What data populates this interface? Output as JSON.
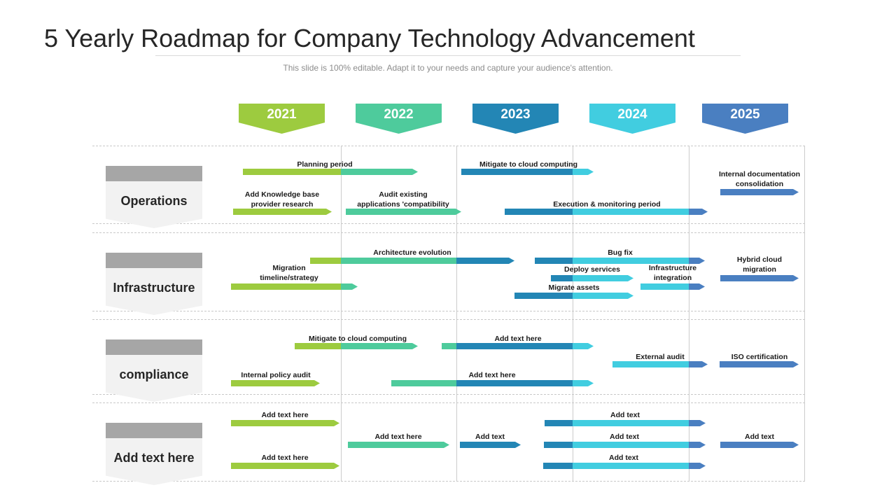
{
  "title": "5 Yearly Roadmap for Company Technology Advancement",
  "subtitle": "This slide is 100% editable. Adapt it to your needs and capture your audience's attention.",
  "colors": {
    "green": "#9dcb3f",
    "teal": "#4ecb9c",
    "dark_blue": "#2386b5",
    "cyan": "#41cde0",
    "blue": "#4a7fc1",
    "label_cap": "#a6a6a6",
    "label_body": "#f2f2f2"
  },
  "years": [
    {
      "label": "2021",
      "color": "#9dcb3f"
    },
    {
      "label": "2022",
      "color": "#4ecb9c"
    },
    {
      "label": "2023",
      "color": "#2386b5"
    },
    {
      "label": "2024",
      "color": "#41cde0"
    },
    {
      "label": "2025",
      "color": "#4a7fc1"
    }
  ],
  "rows": [
    {
      "label": "Operations"
    },
    {
      "label": "Infrastructure"
    },
    {
      "label": "compliance"
    },
    {
      "label": "Add text here"
    }
  ],
  "tasks": [
    "Planning period",
    "Mitigate to cloud computing",
    "Internal documentation\nconsolidation",
    "Add Knowledge base\nprovider research",
    "Audit existing\napplications 'compatibility",
    "Execution & monitoring period",
    "Architecture evolution",
    "Bug fix",
    "Hybrid cloud\nmigration",
    "Migration\ntimeline/strategy",
    "Deploy services",
    "Infrastructure\nintegration",
    "Migrate assets",
    "Mitigate to cloud computing",
    "Add text here",
    "External audit",
    "ISO certification",
    "Internal policy audit",
    "Add text here",
    "Add text here",
    "Add text",
    "Add text here",
    "Add text",
    "Add text",
    "Add text",
    "Add text here",
    "Add text"
  ]
}
